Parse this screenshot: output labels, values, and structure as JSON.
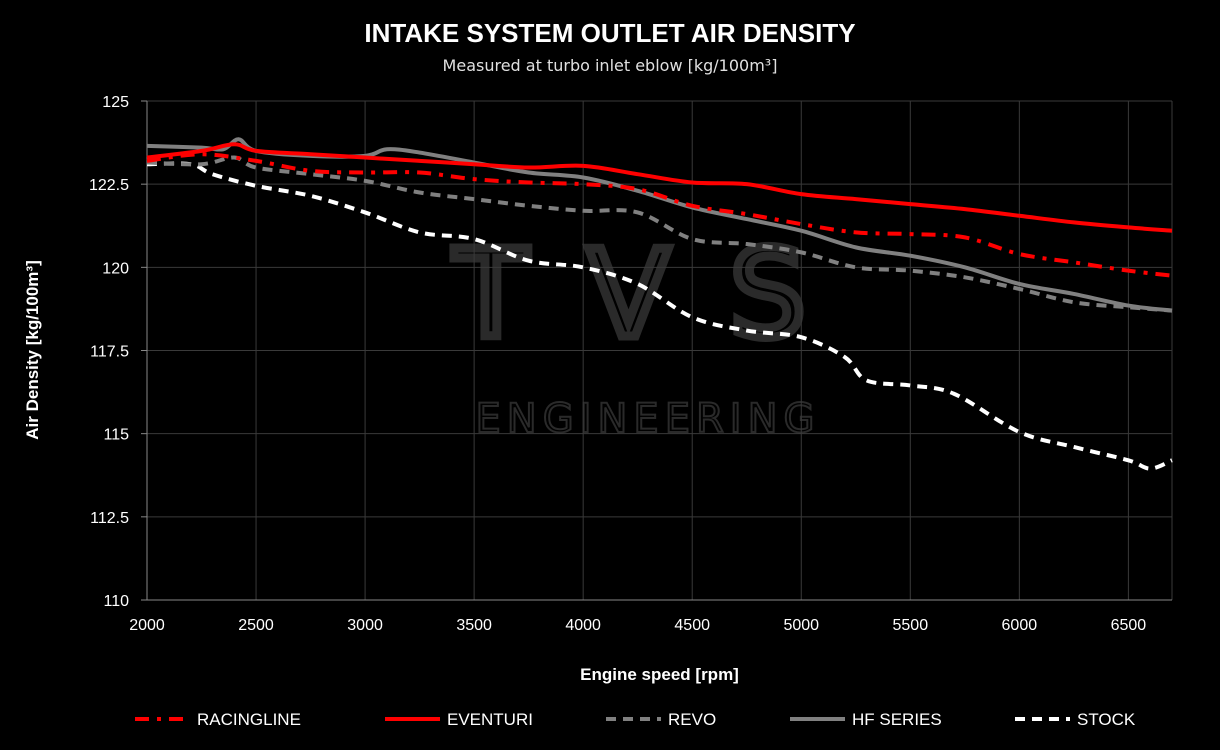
{
  "chart_data": {
    "type": "line",
    "title": "INTAKE SYSTEM OUTLET AIR DENSITY",
    "subtitle": "Measured at turbo inlet eblow [kg/100m³]",
    "xlabel": "Engine speed [rpm]",
    "ylabel": "Air Density [kg/100m³]",
    "xlim": [
      2000,
      6700
    ],
    "ylim": [
      110,
      125
    ],
    "xticks": [
      "2000",
      "2500",
      "3000",
      "3500",
      "4000",
      "4500",
      "5000",
      "5500",
      "6000",
      "6500"
    ],
    "yticks": [
      "110",
      "112.5",
      "115",
      "117.5",
      "120",
      "122.5",
      "125"
    ],
    "grid": true,
    "legend_position": "bottom",
    "watermark": {
      "logo": "TVS",
      "text": "ENGINEERING"
    },
    "series": [
      {
        "name": "RACINGLINE",
        "color": "#ff0000",
        "style": "dashdot",
        "x": [
          2000,
          2250,
          2500,
          2750,
          3000,
          3250,
          3500,
          3750,
          4000,
          4250,
          4500,
          4750,
          5000,
          5250,
          5500,
          5750,
          6000,
          6250,
          6500,
          6700
        ],
        "y": [
          123.2,
          123.4,
          123.2,
          122.9,
          122.85,
          122.85,
          122.65,
          122.55,
          122.5,
          122.35,
          121.85,
          121.6,
          121.3,
          121.05,
          121.0,
          120.9,
          120.4,
          120.15,
          119.9,
          119.75
        ]
      },
      {
        "name": "EVENTURI",
        "color": "#ff0000",
        "style": "solid",
        "x": [
          2000,
          2250,
          2400,
          2500,
          2750,
          3000,
          3250,
          3500,
          3750,
          4000,
          4250,
          4500,
          4750,
          5000,
          5250,
          5500,
          5750,
          6000,
          6250,
          6500,
          6700
        ],
        "y": [
          123.3,
          123.5,
          123.7,
          123.5,
          123.4,
          123.3,
          123.2,
          123.1,
          123.0,
          123.05,
          122.8,
          122.55,
          122.5,
          122.2,
          122.05,
          121.9,
          121.75,
          121.55,
          121.35,
          121.2,
          121.1
        ]
      },
      {
        "name": "REVO",
        "color": "#808080",
        "style": "dashed",
        "x": [
          2000,
          2250,
          2400,
          2500,
          2750,
          3000,
          3250,
          3500,
          3750,
          4000,
          4250,
          4500,
          4750,
          5000,
          5250,
          5500,
          5750,
          6000,
          6250,
          6500,
          6700
        ],
        "y": [
          123.15,
          123.1,
          123.3,
          123.0,
          122.8,
          122.6,
          122.25,
          122.05,
          121.85,
          121.7,
          121.65,
          120.85,
          120.7,
          120.45,
          120.0,
          119.9,
          119.7,
          119.35,
          118.95,
          118.8,
          118.7
        ]
      },
      {
        "name": "HF SERIES",
        "color": "#808080",
        "style": "solid",
        "x": [
          2000,
          2250,
          2350,
          2420,
          2500,
          2750,
          3000,
          3100,
          3250,
          3500,
          3750,
          4000,
          4250,
          4500,
          4750,
          5000,
          5250,
          5500,
          5750,
          6000,
          6250,
          6500,
          6700
        ],
        "y": [
          123.65,
          123.6,
          123.55,
          123.85,
          123.5,
          123.35,
          123.35,
          123.55,
          123.45,
          123.15,
          122.85,
          122.7,
          122.3,
          121.8,
          121.45,
          121.1,
          120.6,
          120.35,
          120.0,
          119.5,
          119.2,
          118.85,
          118.7
        ]
      },
      {
        "name": "STOCK",
        "color": "#ffffff",
        "style": "dashed",
        "x": [
          2000,
          2200,
          2300,
          2500,
          2750,
          3000,
          3250,
          3500,
          3750,
          4000,
          4250,
          4500,
          4750,
          5000,
          5200,
          5300,
          5500,
          5700,
          6000,
          6250,
          6500,
          6600,
          6700
        ],
        "y": [
          123.1,
          123.1,
          122.8,
          122.45,
          122.15,
          121.65,
          121.05,
          120.85,
          120.2,
          120.0,
          119.5,
          118.5,
          118.1,
          117.9,
          117.3,
          116.6,
          116.45,
          116.2,
          115.05,
          114.6,
          114.2,
          113.95,
          114.2
        ]
      }
    ]
  }
}
